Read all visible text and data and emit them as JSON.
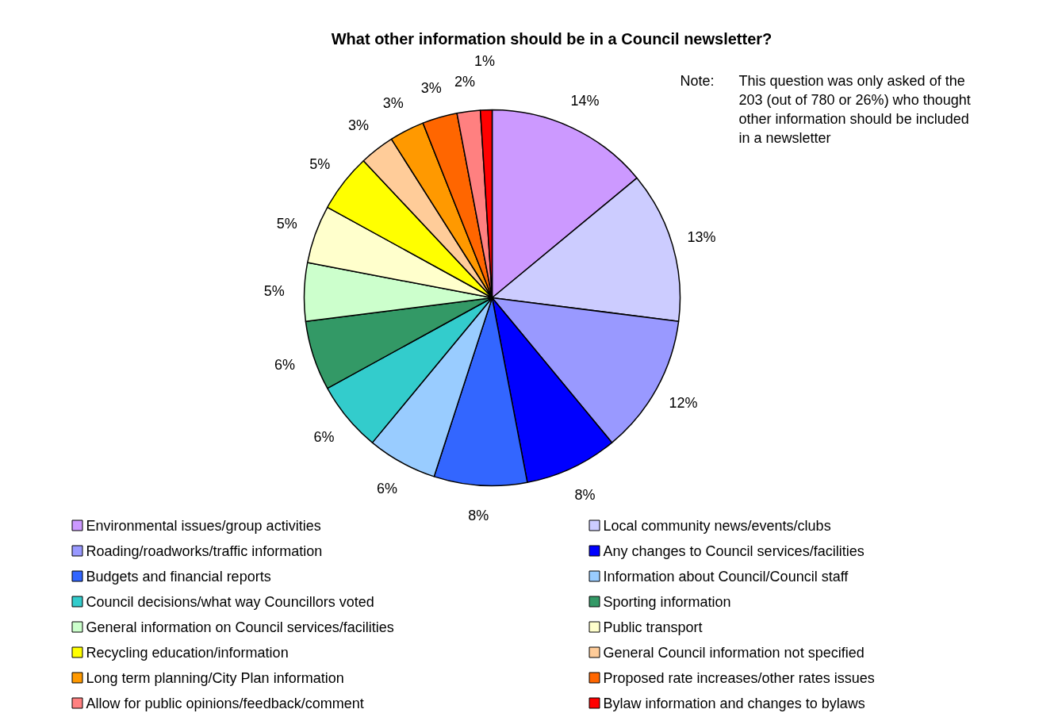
{
  "chart_data": {
    "type": "pie",
    "title": "What other information should be in a Council newsletter?",
    "categories": [
      "Environmental issues/group activities",
      "Local community news/events/clubs",
      "Roading/roadworks/traffic information",
      "Any changes to Council services/facilities",
      "Budgets and financial reports",
      "Information about Council/Council staff",
      "Council decisions/what way Councillors voted",
      "Sporting information",
      "General information on Council services/facilities",
      "Public transport",
      "Recycling education/information",
      "General Council information not specified",
      "Long term planning/City Plan information",
      "Proposed rate increases/other rates issues",
      "Allow for public opinions/feedback/comment",
      "Bylaw information and changes to bylaws"
    ],
    "values": [
      14,
      13,
      12,
      8,
      8,
      6,
      6,
      6,
      5,
      5,
      5,
      3,
      3,
      3,
      2,
      1
    ],
    "colors": [
      "#cc99ff",
      "#ccccff",
      "#9999ff",
      "#0000ff",
      "#3366ff",
      "#99ccff",
      "#33cccc",
      "#339966",
      "#ccffcc",
      "#ffffcc",
      "#ffff00",
      "#ffcc99",
      "#ff9900",
      "#ff6600",
      "#ff8080",
      "#ff0000"
    ],
    "value_labels": [
      "14%",
      "13%",
      "12%",
      "8%",
      "8%",
      "6%",
      "6%",
      "6%",
      "5%",
      "5%",
      "5%",
      "3%",
      "3%",
      "3%",
      "2%",
      "1%"
    ],
    "legend": "bottom",
    "annotations": [
      "Note:",
      "This question was only asked of the 203  (out of 780 or 26%) who thought other information should be included in a newsletter"
    ]
  }
}
